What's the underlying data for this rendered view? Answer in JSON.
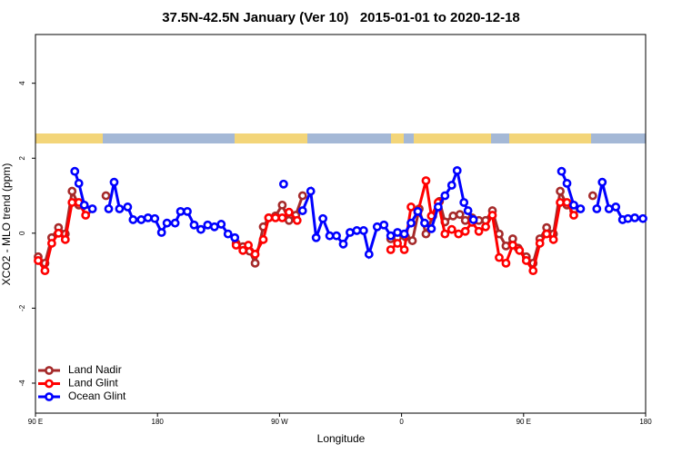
{
  "chart_data": {
    "type": "line",
    "title": "37.5N-42.5N January (Ver 10)   2015-01-01 to 2020-12-18",
    "x_label": "Longitude",
    "y_label": "XCO2 - MLO trend (ppm)",
    "xlim": [
      90,
      540
    ],
    "ylim": [
      -4.8,
      5.3
    ],
    "xticks": [
      {
        "value": 90,
        "label": "90 E"
      },
      180,
      {
        "value": 270,
        "label": "90 W"
      },
      {
        "value": 360,
        "label": "0"
      },
      {
        "value": 450,
        "label": "90 E"
      },
      {
        "value": 540,
        "label": "180"
      }
    ],
    "yticks": [
      -4,
      -2,
      0,
      2,
      4
    ],
    "legend": "bottom-left",
    "series": [
      {
        "name": "Land Nadir",
        "color": "#a52a2a",
        "x": [
          92,
          97,
          102,
          107,
          112,
          117,
          122,
          128,
          null,
          142,
          null,
          238,
          243,
          248,
          252,
          258,
          262,
          267,
          272,
          277,
          282,
          287,
          null,
          352,
          357,
          363,
          368,
          373,
          378,
          383,
          388,
          392,
          398,
          403,
          407,
          412,
          417,
          422,
          427,
          432,
          437,
          442,
          446,
          452,
          457,
          462,
          467,
          472,
          477,
          482,
          487,
          null,
          501
        ],
        "values": [
          -0.63,
          -0.8,
          -0.12,
          0.15,
          -0.02,
          1.12,
          0.75,
          0.6,
          null,
          1.0,
          null,
          -0.27,
          -0.36,
          -0.48,
          -0.8,
          0.17,
          0.41,
          0.46,
          0.75,
          0.34,
          0.48,
          1.0,
          null,
          -0.15,
          -0.12,
          -0.1,
          -0.2,
          0.65,
          -0.02,
          0.46,
          0.85,
          0.3,
          0.46,
          0.5,
          0.34,
          0.41,
          0.34,
          0.34,
          0.6,
          -0.02,
          -0.34,
          -0.15,
          -0.4,
          -0.63,
          -0.8,
          -0.15,
          0.15,
          -0.02,
          1.12,
          0.75,
          0.6,
          null,
          1.0
        ]
      },
      {
        "name": "Land Glint",
        "color": "#ff0000",
        "x": [
          92,
          97,
          102,
          107,
          112,
          117,
          122,
          127,
          null,
          238,
          243,
          247,
          252,
          258,
          262,
          267,
          272,
          277,
          283,
          null,
          352,
          357,
          362,
          367,
          372,
          378,
          382,
          387,
          392,
          397,
          402,
          407,
          412,
          417,
          422,
          427,
          432,
          437,
          442,
          447,
          452,
          457,
          462,
          467,
          472,
          477,
          482,
          487
        ],
        "values": [
          -0.73,
          -1.0,
          -0.27,
          0,
          -0.17,
          0.82,
          0.82,
          0.48,
          null,
          -0.32,
          -0.46,
          -0.32,
          -0.56,
          -0.17,
          0.41,
          0.41,
          0.41,
          0.56,
          0.34,
          null,
          -0.44,
          -0.27,
          -0.44,
          0.7,
          0.56,
          1.4,
          0.46,
          0.82,
          -0.02,
          0.1,
          -0.02,
          0.05,
          0.29,
          0.05,
          0.17,
          0.48,
          -0.65,
          -0.8,
          -0.32,
          -0.46,
          -0.73,
          -1.0,
          -0.27,
          -0.02,
          -0.17,
          0.82,
          0.82,
          0.48
        ]
      },
      {
        "name": "Ocean Glint",
        "color": "#0000ff",
        "x": [
          119,
          122,
          126,
          132,
          null,
          144,
          148,
          152,
          158,
          162,
          168,
          173,
          178,
          183,
          187,
          193,
          197,
          202,
          207,
          212,
          217,
          222,
          227,
          232,
          237,
          null,
          273,
          null,
          287,
          293,
          297,
          302,
          307,
          312,
          317,
          322,
          327,
          332,
          336,
          342,
          347,
          352,
          357,
          362,
          367,
          372,
          377,
          382,
          387,
          392,
          397,
          401,
          406,
          409,
          413,
          null,
          478,
          482,
          487,
          492,
          null,
          504,
          508,
          513,
          518,
          523,
          527,
          532,
          538
        ],
        "values": [
          1.65,
          1.33,
          0.75,
          0.65,
          null,
          0.65,
          1.36,
          0.65,
          0.7,
          0.36,
          0.36,
          0.41,
          0.39,
          0.02,
          0.27,
          0.27,
          0.58,
          0.58,
          0.22,
          0.1,
          0.22,
          0.17,
          0.24,
          -0.02,
          -0.12,
          null,
          1.31,
          null,
          0.6,
          1.12,
          -0.12,
          0.39,
          -0.07,
          -0.07,
          -0.29,
          0.02,
          0.07,
          0.07,
          -0.56,
          0.17,
          0.22,
          -0.07,
          0.02,
          -0.02,
          0.27,
          0.58,
          0.27,
          0.12,
          0.7,
          1.0,
          1.28,
          1.67,
          0.82,
          0.6,
          0.36,
          null,
          1.65,
          1.33,
          0.75,
          0.65,
          null,
          0.65,
          1.36,
          0.65,
          0.7,
          0.36,
          0.39,
          0.41,
          0.39
        ]
      }
    ]
  }
}
